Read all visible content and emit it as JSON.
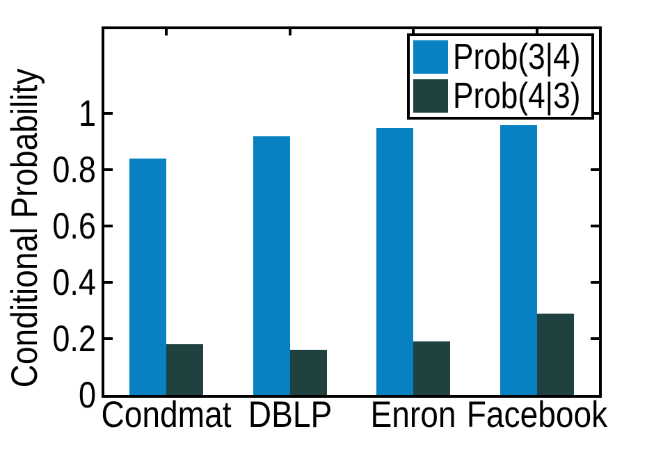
{
  "chart_data": {
    "type": "bar",
    "ylabel": "Conditional Probability",
    "categories": [
      "Condmat",
      "DBLP",
      "Enron",
      "Facebook"
    ],
    "series": [
      {
        "name": "Prob(3|4)",
        "color": "#0881c2",
        "values": [
          0.84,
          0.92,
          0.95,
          0.96
        ]
      },
      {
        "name": "Prob(4|3)",
        "color": "#1f4140",
        "values": [
          0.18,
          0.16,
          0.19,
          0.29
        ]
      }
    ],
    "ylim": [
      0,
      1.3
    ],
    "yticks": [
      0,
      0.2,
      0.4,
      0.6,
      0.8,
      1
    ],
    "ytick_labels": [
      "0",
      "0.2",
      "0.4",
      "0.6",
      "0.8",
      "1"
    ],
    "grid": false,
    "legend_position": "top-right",
    "axis_color": "#000000",
    "background": "#ffffff"
  }
}
